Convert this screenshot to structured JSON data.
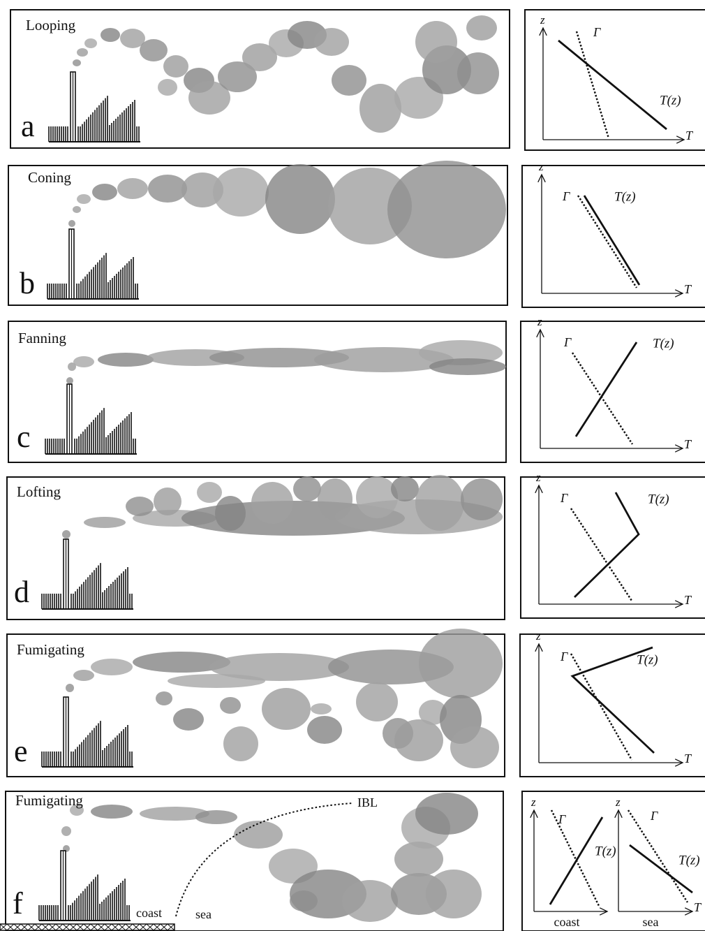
{
  "panels": [
    {
      "title": "Looping",
      "letter": "a",
      "profile": {
        "z": "z",
        "gamma": "Γ",
        "tz": "T(z)",
        "t": "T"
      }
    },
    {
      "title": "Coning",
      "letter": "b",
      "profile": {
        "z": "z",
        "gamma": "Γ",
        "tz": "T(z)",
        "t": "T"
      }
    },
    {
      "title": "Fanning",
      "letter": "c",
      "profile": {
        "z": "z",
        "gamma": "Γ",
        "tz": "T(z)",
        "t": "T"
      }
    },
    {
      "title": "Lofting",
      "letter": "d",
      "profile": {
        "z": "z",
        "gamma": "Γ",
        "tz": "T(z)",
        "t": "T"
      }
    },
    {
      "title": "Fumigating",
      "letter": "e",
      "profile": {
        "z": "z",
        "gamma": "Γ",
        "tz": "T(z)",
        "t": "T"
      }
    },
    {
      "title": "Fumigating",
      "letter": "f",
      "ibl": "IBL",
      "coast": "coast",
      "sea": "sea",
      "profiles": [
        {
          "z": "z",
          "gamma": "Γ",
          "tz": "T(z)",
          "caption": "coast"
        },
        {
          "z": "z",
          "gamma": "Γ",
          "tz": "T(z)",
          "t": "T",
          "caption": "sea"
        }
      ]
    }
  ]
}
